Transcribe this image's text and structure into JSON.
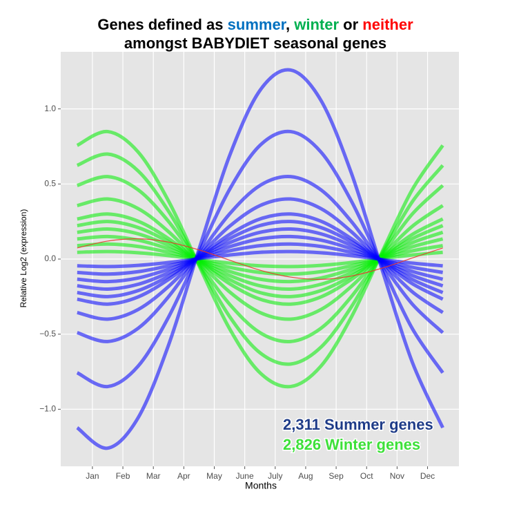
{
  "chart_data": {
    "type": "line",
    "title_segments": [
      {
        "text": "Genes defined as ",
        "color": "#000000"
      },
      {
        "text": "summer",
        "color": "#0070c0"
      },
      {
        "text": ", ",
        "color": "#000000"
      },
      {
        "text": "winter",
        "color": "#00b050"
      },
      {
        "text": " or ",
        "color": "#000000"
      },
      {
        "text": "neither",
        "color": "#ff0000"
      }
    ],
    "subtitle": "amongst BABYDIET seasonal genes",
    "x_label": "Months",
    "y_label": "Relative Log2 (expression)",
    "annotations": [
      {
        "text": "2,311 Summer genes",
        "color": "#1f3c88"
      },
      {
        "text": "2,826 Winter genes",
        "color": "#3ee03a"
      }
    ],
    "xlim": [
      -0.04,
      13.03
    ],
    "xticks": [
      {
        "value": 1,
        "label": "Jan"
      },
      {
        "value": 2,
        "label": "Feb"
      },
      {
        "value": 3,
        "label": "Mar"
      },
      {
        "value": 4,
        "label": "Apr"
      },
      {
        "value": 5,
        "label": "May"
      },
      {
        "value": 6,
        "label": "June"
      },
      {
        "value": 7,
        "label": "July"
      },
      {
        "value": 8,
        "label": "Aug"
      },
      {
        "value": 9,
        "label": "Sep"
      },
      {
        "value": 10,
        "label": "Oct"
      },
      {
        "value": 11,
        "label": "Nov"
      },
      {
        "value": 12,
        "label": "Dec"
      }
    ],
    "ylim": [
      -1.38,
      1.38
    ],
    "yticks": [
      {
        "value": -1,
        "label": "−1.0"
      },
      {
        "value": -0.5,
        "label": "−0.5"
      },
      {
        "value": 0,
        "label": "0.0"
      },
      0.5,
      {
        "value": 1,
        "label": "1.0"
      }
    ],
    "grid": true,
    "x": [
      0.5,
      1.5,
      2.5,
      3.5,
      4.5,
      5.5,
      6.5,
      7.5,
      8.5,
      9.5,
      10.5,
      11.5,
      12.5
    ],
    "series": [
      {
        "color": "#00ee00",
        "values": [
          0.045,
          0.05,
          0.042,
          0.023,
          -0.003,
          -0.027,
          -0.045,
          -0.05,
          -0.042,
          -0.023,
          0.003,
          0.027,
          0.045
        ]
      },
      {
        "color": "#00ee00",
        "values": [
          0.089,
          0.1,
          0.084,
          0.045,
          -0.005,
          -0.055,
          -0.089,
          -0.1,
          -0.084,
          -0.045,
          0.005,
          0.055,
          0.089
        ]
      },
      {
        "color": "#00ee00",
        "values": [
          0.134,
          0.15,
          0.126,
          0.068,
          -0.008,
          -0.082,
          -0.134,
          -0.15,
          -0.126,
          -0.068,
          0.008,
          0.082,
          0.134
        ]
      },
      {
        "color": "#00ee00",
        "values": [
          0.178,
          0.2,
          0.168,
          0.091,
          -0.01,
          -0.109,
          -0.178,
          -0.2,
          -0.168,
          -0.091,
          0.01,
          0.109,
          0.178
        ]
      },
      {
        "color": "#00ee00",
        "values": [
          0.223,
          0.25,
          0.21,
          0.114,
          -0.013,
          -0.136,
          -0.223,
          -0.25,
          -0.21,
          -0.114,
          0.013,
          0.136,
          0.223
        ]
      },
      {
        "color": "#00ee00",
        "values": [
          0.267,
          0.3,
          0.252,
          0.136,
          -0.016,
          -0.164,
          -0.267,
          -0.3,
          -0.252,
          -0.136,
          0.016,
          0.164,
          0.267
        ]
      },
      {
        "color": "#00ee00",
        "values": [
          0.356,
          0.4,
          0.336,
          0.182,
          -0.021,
          -0.218,
          -0.356,
          -0.4,
          -0.336,
          -0.182,
          0.021,
          0.218,
          0.356
        ]
      },
      {
        "color": "#00ee00",
        "values": [
          0.49,
          0.549,
          0.461,
          0.25,
          -0.029,
          -0.3,
          -0.49,
          -0.549,
          -0.461,
          -0.25,
          0.029,
          0.3,
          0.49
        ]
      },
      {
        "color": "#00ee00",
        "values": [
          0.624,
          0.699,
          0.587,
          0.318,
          -0.036,
          -0.382,
          -0.624,
          -0.699,
          -0.587,
          -0.318,
          0.036,
          0.382,
          0.624
        ]
      },
      {
        "color": "#00ee00",
        "values": [
          0.757,
          0.849,
          0.713,
          0.386,
          -0.044,
          -0.463,
          -0.757,
          -0.849,
          -0.713,
          -0.386,
          0.044,
          0.463,
          0.757
        ]
      },
      {
        "color": "#0000ff",
        "values": [
          -0.045,
          -0.05,
          -0.042,
          -0.023,
          0.003,
          0.027,
          0.045,
          0.05,
          0.042,
          0.023,
          -0.003,
          -0.027,
          -0.045
        ]
      },
      {
        "color": "#0000ff",
        "values": [
          -0.089,
          -0.1,
          -0.084,
          -0.045,
          0.005,
          0.055,
          0.089,
          0.1,
          0.084,
          0.045,
          -0.005,
          -0.055,
          -0.089
        ]
      },
      {
        "color": "#0000ff",
        "values": [
          -0.134,
          -0.15,
          -0.126,
          -0.068,
          0.008,
          0.082,
          0.134,
          0.15,
          0.126,
          0.068,
          -0.008,
          -0.082,
          -0.134
        ]
      },
      {
        "color": "#0000ff",
        "values": [
          -0.178,
          -0.2,
          -0.168,
          -0.091,
          0.01,
          0.109,
          0.178,
          0.2,
          0.168,
          0.091,
          -0.01,
          -0.109,
          -0.178
        ]
      },
      {
        "color": "#0000ff",
        "values": [
          -0.223,
          -0.25,
          -0.21,
          -0.114,
          0.013,
          0.136,
          0.223,
          0.25,
          0.21,
          0.114,
          -0.013,
          -0.136,
          -0.223
        ]
      },
      {
        "color": "#0000ff",
        "values": [
          -0.267,
          -0.3,
          -0.252,
          -0.136,
          0.016,
          0.164,
          0.267,
          0.3,
          0.252,
          0.136,
          -0.016,
          -0.164,
          -0.267
        ]
      },
      {
        "color": "#0000ff",
        "values": [
          -0.356,
          -0.4,
          -0.336,
          -0.182,
          0.021,
          0.218,
          0.356,
          0.4,
          0.336,
          0.182,
          -0.021,
          -0.218,
          -0.356
        ]
      },
      {
        "color": "#0000ff",
        "values": [
          -0.49,
          -0.549,
          -0.461,
          -0.25,
          0.029,
          0.3,
          0.49,
          0.549,
          0.461,
          0.25,
          -0.029,
          -0.3,
          -0.49
        ]
      },
      {
        "color": "#0000ff",
        "values": [
          -0.757,
          -0.849,
          -0.713,
          -0.386,
          0.044,
          0.463,
          0.757,
          0.849,
          0.713,
          0.386,
          -0.044,
          -0.463,
          -0.757
        ]
      },
      {
        "color": "#0000ff",
        "values": [
          -1.123,
          -1.259,
          -1.057,
          -0.572,
          0.066,
          0.687,
          1.123,
          1.259,
          1.057,
          0.572,
          -0.066,
          -0.687,
          -1.123
        ]
      },
      {
        "color": "#e8372a",
        "values": [
          0.074,
          0.12,
          0.135,
          0.113,
          0.061,
          -0.007,
          -0.074,
          -0.12,
          -0.135,
          -0.113,
          -0.061,
          0.007,
          0.074
        ]
      }
    ]
  }
}
